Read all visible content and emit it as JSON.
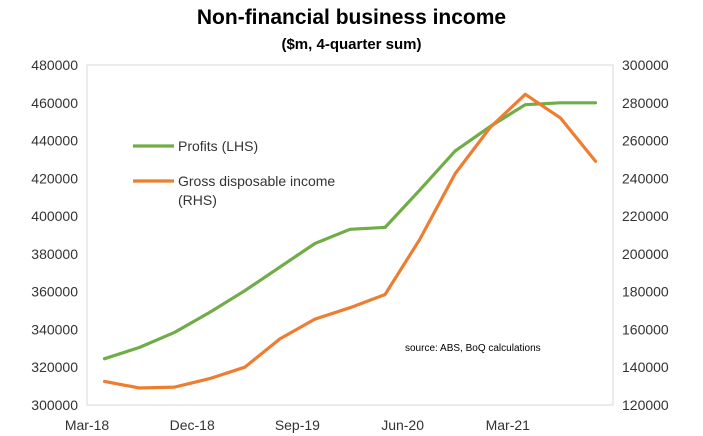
{
  "chart_data": {
    "type": "line",
    "title": "Non-financial business income",
    "subtitle": "($m, 4-quarter sum)",
    "x_tick_labels": [
      "Mar-18",
      "Dec-18",
      "Sep-19",
      "Jun-20",
      "Mar-21"
    ],
    "x": [
      "Mar-18",
      "Jun-18",
      "Sep-18",
      "Dec-18",
      "Mar-19",
      "Jun-19",
      "Sep-19",
      "Dec-19",
      "Mar-20",
      "Jun-20",
      "Sep-20",
      "Dec-20",
      "Mar-21",
      "Jun-21",
      "Sep-21"
    ],
    "series": [
      {
        "name": "Profits (LHS)",
        "axis": "left",
        "color": "#70AD47",
        "values": [
          324500,
          330500,
          338500,
          349000,
          360500,
          373000,
          385500,
          393000,
          394000,
          414000,
          434500,
          447500,
          459000,
          460000,
          460000
        ]
      },
      {
        "name": "Gross disposable income (RHS)",
        "axis": "right",
        "color": "#ED7D31",
        "values": [
          132500,
          129000,
          129500,
          134000,
          140000,
          155000,
          165500,
          171500,
          178500,
          208000,
          242500,
          267000,
          284500,
          272000,
          249000
        ]
      }
    ],
    "y_left": {
      "min": 300000,
      "max": 480000,
      "step": 20000,
      "ticks": [
        "300000",
        "320000",
        "340000",
        "360000",
        "380000",
        "400000",
        "420000",
        "440000",
        "460000",
        "480000"
      ]
    },
    "y_right": {
      "min": 120000,
      "max": 300000,
      "step": 20000,
      "ticks": [
        "120000",
        "140000",
        "160000",
        "180000",
        "200000",
        "220000",
        "240000",
        "260000",
        "280000",
        "300000"
      ]
    },
    "legend": [
      {
        "label_lines": [
          "Profits (LHS)"
        ],
        "color": "#70AD47"
      },
      {
        "label_lines": [
          "Gross disposable income",
          "(RHS)"
        ],
        "color": "#ED7D31"
      }
    ],
    "annotation": "source:  ABS, BoQ calculations",
    "grid": false
  }
}
